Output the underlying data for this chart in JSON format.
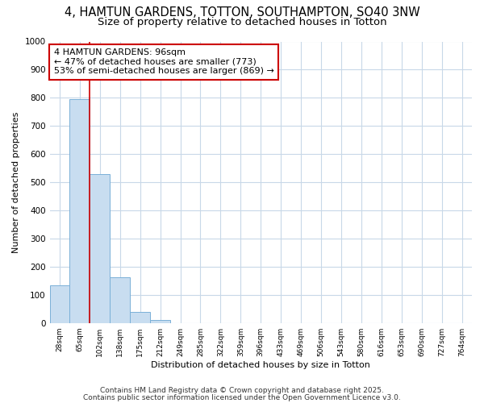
{
  "title": "4, HAMTUN GARDENS, TOTTON, SOUTHAMPTON, SO40 3NW",
  "subtitle": "Size of property relative to detached houses in Totton",
  "xlabel": "Distribution of detached houses by size in Totton",
  "ylabel": "Number of detached properties",
  "categories": [
    "28sqm",
    "65sqm",
    "102sqm",
    "138sqm",
    "175sqm",
    "212sqm",
    "249sqm",
    "285sqm",
    "322sqm",
    "359sqm",
    "396sqm",
    "433sqm",
    "469sqm",
    "506sqm",
    "543sqm",
    "580sqm",
    "616sqm",
    "653sqm",
    "690sqm",
    "727sqm",
    "764sqm"
  ],
  "values": [
    135,
    795,
    530,
    163,
    38,
    10,
    0,
    0,
    0,
    0,
    0,
    0,
    0,
    0,
    0,
    0,
    0,
    0,
    0,
    0,
    0
  ],
  "bar_color": "#c8ddf0",
  "bar_edge_color": "#7ab0d8",
  "ylim": [
    0,
    1000
  ],
  "yticks": [
    0,
    100,
    200,
    300,
    400,
    500,
    600,
    700,
    800,
    900,
    1000
  ],
  "red_line_x": 1.5,
  "annotation_line1": "4 HAMTUN GARDENS: 96sqm",
  "annotation_line2": "← 47% of detached houses are smaller (773)",
  "annotation_line3": "53% of semi-detached houses are larger (869) →",
  "annotation_box_color": "#cc0000",
  "background_color": "#ffffff",
  "plot_bg_color": "#ffffff",
  "grid_color": "#c8d8e8",
  "footer_line1": "Contains HM Land Registry data © Crown copyright and database right 2025.",
  "footer_line2": "Contains public sector information licensed under the Open Government Licence v3.0.",
  "title_fontsize": 10.5,
  "subtitle_fontsize": 9.5,
  "annotation_fontsize": 8,
  "footer_fontsize": 6.5,
  "ylabel_fontsize": 8,
  "xlabel_fontsize": 8
}
